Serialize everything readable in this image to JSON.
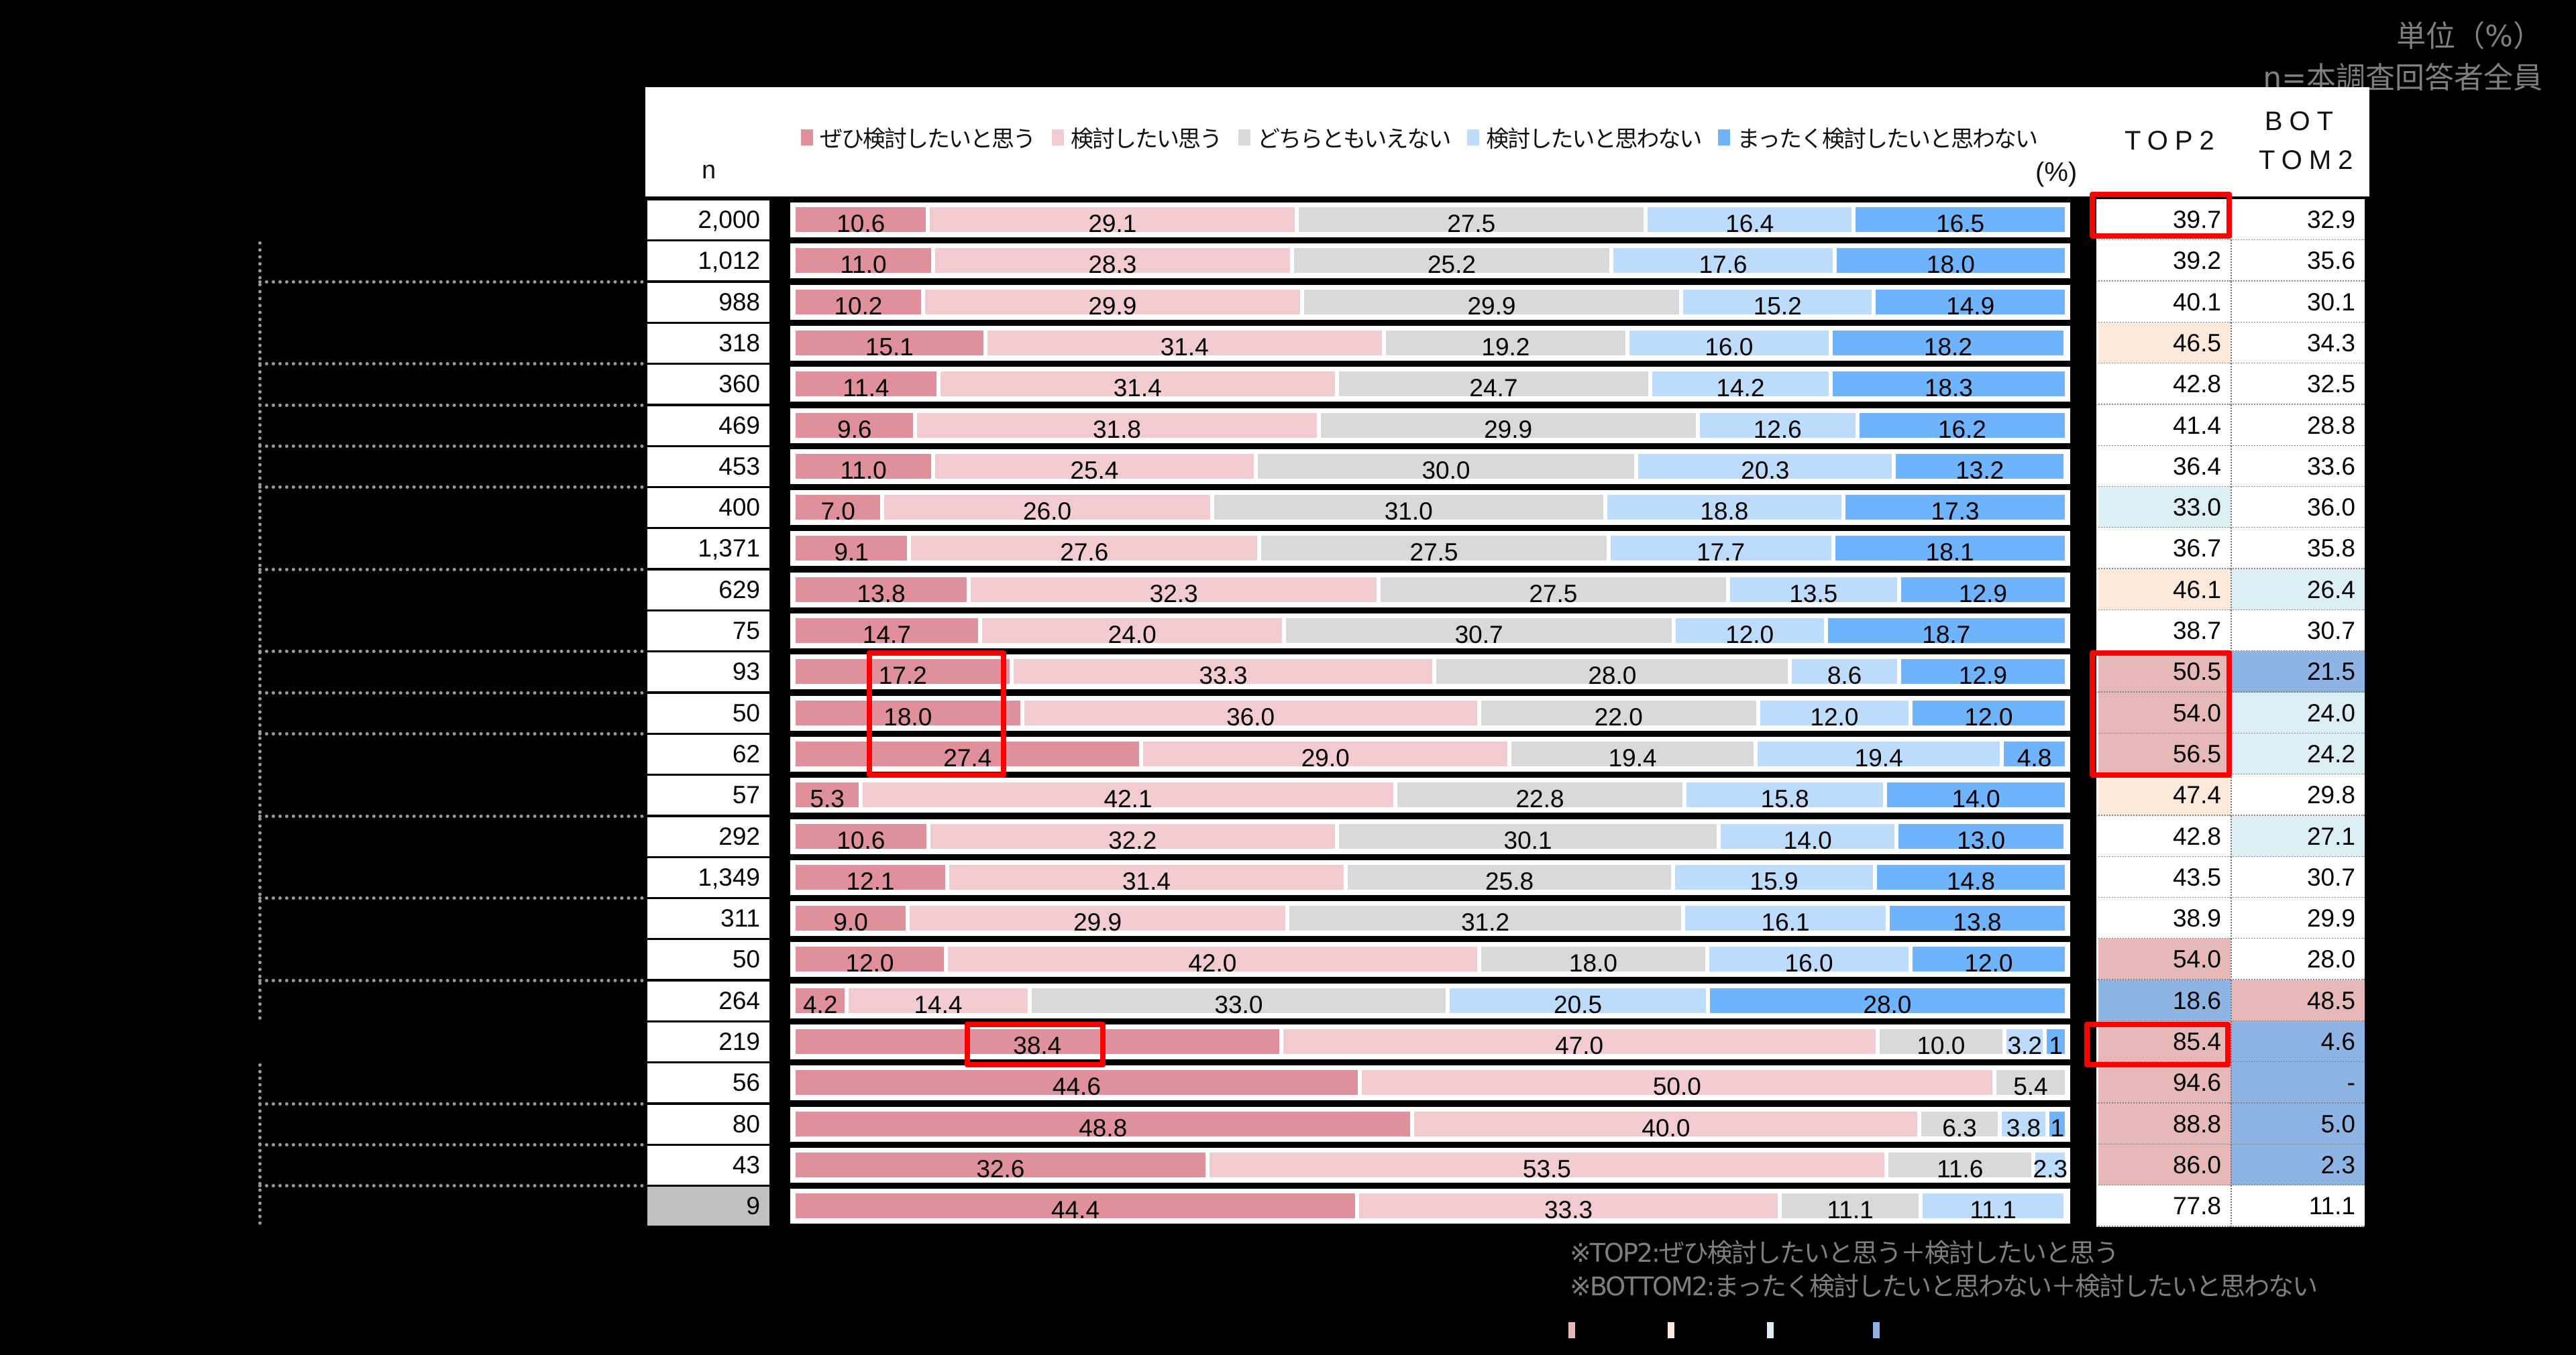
{
  "unit_label": "単位（%）",
  "base_label": "n=本調査回答者全員",
  "header": {
    "n": "n",
    "pct": "(%)",
    "top2": "TOP2",
    "bottom2_line1": "BOT",
    "bottom2_line2": "TOM2"
  },
  "legend": [
    {
      "label": "ぜひ検討したいと思う",
      "color": "#e0909a"
    },
    {
      "label": "検討したい思う",
      "color": "#f2cbd1"
    },
    {
      "label": "どちらともいえない",
      "color": "#d9d9d9"
    },
    {
      "label": "検討したいと思わない",
      "color": "#bddcfb"
    },
    {
      "label": "まったく検討したいと思わない",
      "color": "#6eb3fb"
    }
  ],
  "notes": [
    "※TOP2:ぜひ検討したいと思う＋検討したいと思う",
    "※BOTTOM2:まったく検討したいと思わない＋検討したいと思わない"
  ],
  "highlight_colors": {
    "top2_high": "#e6b8b7",
    "top2_mid": "#fde9d9",
    "low_light": "#daeef3",
    "low_strong": "#8db4e2",
    "box": "#ff0000"
  },
  "chart_data": {
    "type": "bar",
    "orientation": "horizontal-stacked-100",
    "title": "",
    "unit": "%",
    "series_names": [
      "ぜひ検討したいと思う",
      "検討したい思う",
      "どちらともいえない",
      "検討したいと思わない",
      "まったく検討したいと思わない"
    ],
    "rows": [
      {
        "n": "2,000",
        "values": [
          10.6,
          29.1,
          27.5,
          16.4,
          16.5
        ],
        "labels": [
          "10.6",
          "29.1",
          "27.5",
          "16.4",
          "16.5"
        ],
        "top2": "39.7",
        "bottom2": "32.9"
      },
      {
        "n": "1,012",
        "values": [
          11.0,
          28.3,
          25.2,
          17.6,
          18.0
        ],
        "labels": [
          "11.0",
          "28.3",
          "25.2",
          "17.6",
          "18.0"
        ],
        "top2": "39.2",
        "bottom2": "35.6"
      },
      {
        "n": "988",
        "values": [
          10.2,
          29.9,
          29.9,
          15.2,
          14.9
        ],
        "labels": [
          "10.2",
          "29.9",
          "29.9",
          "15.2",
          "14.9"
        ],
        "top2": "40.1",
        "bottom2": "30.1"
      },
      {
        "n": "318",
        "values": [
          15.1,
          31.4,
          19.2,
          16.0,
          18.2
        ],
        "labels": [
          "15.1",
          "31.4",
          "19.2",
          "16.0",
          "18.2"
        ],
        "top2": "46.5",
        "bottom2": "34.3"
      },
      {
        "n": "360",
        "values": [
          11.4,
          31.4,
          24.7,
          14.2,
          18.3
        ],
        "labels": [
          "11.4",
          "31.4",
          "24.7",
          "14.2",
          "18.3"
        ],
        "top2": "42.8",
        "bottom2": "32.5"
      },
      {
        "n": "469",
        "values": [
          9.6,
          31.8,
          29.9,
          12.6,
          16.2
        ],
        "labels": [
          "9.6",
          "31.8",
          "29.9",
          "12.6",
          "16.2"
        ],
        "top2": "41.4",
        "bottom2": "28.8"
      },
      {
        "n": "453",
        "values": [
          11.0,
          25.4,
          30.0,
          20.3,
          13.2
        ],
        "labels": [
          "11.0",
          "25.4",
          "30.0",
          "20.3",
          "13.2"
        ],
        "top2": "36.4",
        "bottom2": "33.6"
      },
      {
        "n": "400",
        "values": [
          7.0,
          26.0,
          31.0,
          18.8,
          17.3
        ],
        "labels": [
          "7.0",
          "26.0",
          "31.0",
          "18.8",
          "17.3"
        ],
        "top2": "33.0",
        "bottom2": "36.0"
      },
      {
        "n": "1,371",
        "values": [
          9.1,
          27.6,
          27.5,
          17.7,
          18.1
        ],
        "labels": [
          "9.1",
          "27.6",
          "27.5",
          "17.7",
          "18.1"
        ],
        "top2": "36.7",
        "bottom2": "35.8"
      },
      {
        "n": "629",
        "values": [
          13.8,
          32.3,
          27.5,
          13.5,
          12.9
        ],
        "labels": [
          "13.8",
          "32.3",
          "27.5",
          "13.5",
          "12.9"
        ],
        "top2": "46.1",
        "bottom2": "26.4"
      },
      {
        "n": "75",
        "values": [
          14.7,
          24.0,
          30.7,
          12.0,
          18.7
        ],
        "labels": [
          "14.7",
          "24.0",
          "30.7",
          "12.0",
          "18.7"
        ],
        "top2": "38.7",
        "bottom2": "30.7"
      },
      {
        "n": "93",
        "values": [
          17.2,
          33.3,
          28.0,
          8.6,
          12.9
        ],
        "labels": [
          "17.2",
          "33.3",
          "28.0",
          "8.6",
          "12.9"
        ],
        "top2": "50.5",
        "bottom2": "21.5"
      },
      {
        "n": "50",
        "values": [
          18.0,
          36.0,
          22.0,
          12.0,
          12.0
        ],
        "labels": [
          "18.0",
          "36.0",
          "22.0",
          "12.0",
          "12.0"
        ],
        "top2": "54.0",
        "bottom2": "24.0"
      },
      {
        "n": "62",
        "values": [
          27.4,
          29.0,
          19.4,
          19.4,
          4.8
        ],
        "labels": [
          "27.4",
          "29.0",
          "19.4",
          "19.4",
          "4.8"
        ],
        "top2": "56.5",
        "bottom2": "24.2"
      },
      {
        "n": "57",
        "values": [
          5.3,
          42.1,
          22.8,
          15.8,
          14.0
        ],
        "labels": [
          "5.3",
          "42.1",
          "22.8",
          "15.8",
          "14.0"
        ],
        "top2": "47.4",
        "bottom2": "29.8"
      },
      {
        "n": "292",
        "values": [
          10.6,
          32.2,
          30.1,
          14.0,
          13.0
        ],
        "labels": [
          "10.6",
          "32.2",
          "30.1",
          "14.0",
          "13.0"
        ],
        "top2": "42.8",
        "bottom2": "27.1"
      },
      {
        "n": "1,349",
        "values": [
          12.1,
          31.4,
          25.8,
          15.9,
          14.8
        ],
        "labels": [
          "12.1",
          "31.4",
          "25.8",
          "15.9",
          "14.8"
        ],
        "top2": "43.5",
        "bottom2": "30.7"
      },
      {
        "n": "311",
        "values": [
          9.0,
          29.9,
          31.2,
          16.1,
          13.8
        ],
        "labels": [
          "9.0",
          "29.9",
          "31.2",
          "16.1",
          "13.8"
        ],
        "top2": "38.9",
        "bottom2": "29.9"
      },
      {
        "n": "50",
        "values": [
          12.0,
          42.0,
          18.0,
          16.0,
          12.0
        ],
        "labels": [
          "12.0",
          "42.0",
          "18.0",
          "16.0",
          "12.0"
        ],
        "top2": "54.0",
        "bottom2": "28.0"
      },
      {
        "n": "264",
        "values": [
          4.2,
          14.4,
          33.0,
          20.5,
          28.0
        ],
        "labels": [
          "4.2",
          "14.4",
          "33.0",
          "20.5",
          "28.0"
        ],
        "top2": "18.6",
        "bottom2": "48.5"
      },
      {
        "n": "219",
        "values": [
          38.4,
          47.0,
          10.0,
          3.2,
          1.4
        ],
        "labels": [
          "38.4",
          "47.0",
          "10.0",
          "3.2",
          "1"
        ],
        "top2": "85.4",
        "bottom2": "4.6"
      },
      {
        "n": "56",
        "values": [
          44.6,
          50.0,
          5.4,
          0,
          0
        ],
        "labels": [
          "44.6",
          "50.0",
          "5.4",
          "",
          ""
        ],
        "top2": "94.6",
        "bottom2": "-"
      },
      {
        "n": "80",
        "values": [
          48.8,
          40.0,
          6.3,
          3.8,
          1.2
        ],
        "labels": [
          "48.8",
          "40.0",
          "6.3",
          "3.8",
          "1"
        ],
        "top2": "88.8",
        "bottom2": "5.0"
      },
      {
        "n": "43",
        "values": [
          32.6,
          53.5,
          11.6,
          2.3,
          0
        ],
        "labels": [
          "32.6",
          "53.5",
          "11.6",
          "2.3",
          ""
        ],
        "top2": "86.0",
        "bottom2": "2.3"
      },
      {
        "n": "9",
        "values": [
          44.4,
          33.3,
          11.1,
          11.1,
          0
        ],
        "labels": [
          "44.4",
          "33.3",
          "11.1",
          "11.1",
          ""
        ],
        "top2": "77.8",
        "bottom2": "11.1"
      }
    ],
    "legend_position": "top",
    "grid": false
  }
}
